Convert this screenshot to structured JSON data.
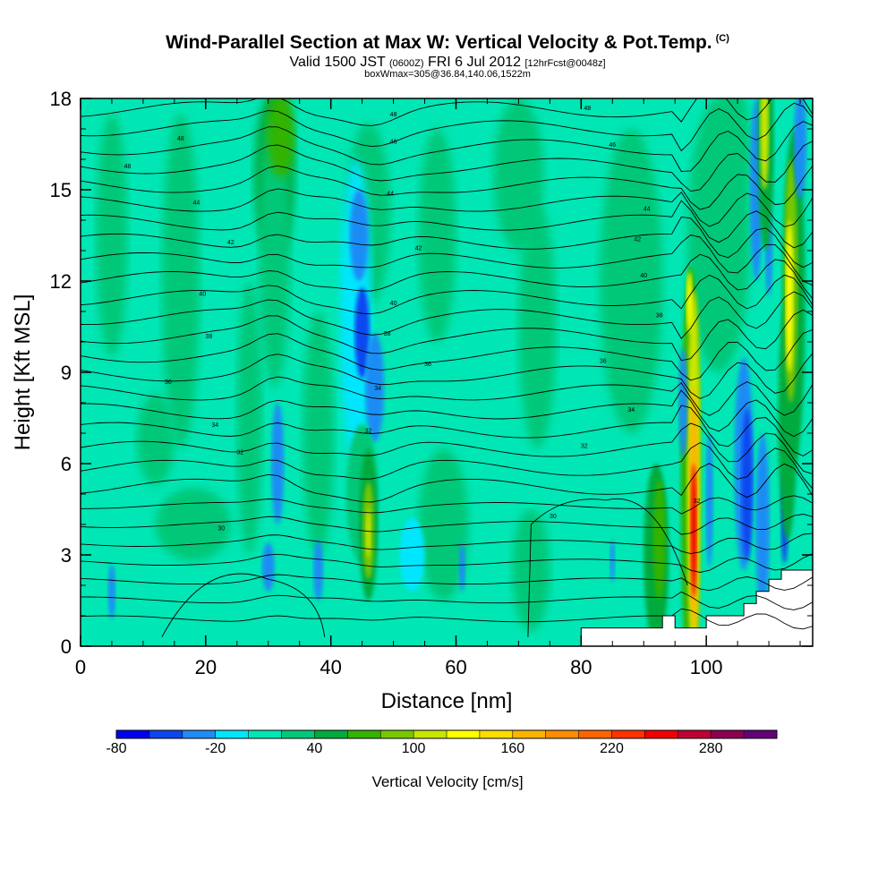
{
  "title": {
    "main": "Wind-Parallel Section at Max W: Vertical Velocity & Pot.Temp.",
    "copyright": "(C)",
    "valid_prefix": "Valid 1500 JST",
    "valid_utc": "(0600Z)",
    "valid_date": "FRI 6 Jul 2012",
    "forecast": "[12hrFcst@0048z]",
    "box_info": "boxWmax=305@36.84,140.06,1522m"
  },
  "chart_data": {
    "type": "heatmap",
    "xlabel": "Distance [nm]",
    "ylabel": "Height [Kft MSL]",
    "xlim": [
      0,
      117
    ],
    "ylim": [
      0,
      18
    ],
    "x_ticks": [
      0,
      20,
      40,
      60,
      80,
      100
    ],
    "y_ticks": [
      0,
      3,
      6,
      9,
      12,
      15,
      18
    ],
    "colorbar": {
      "title": "Vertical Velocity [cm/s]",
      "tick_labels": [
        "-80",
        "-20",
        "40",
        "100",
        "160",
        "220",
        "280"
      ],
      "levels": [
        -80,
        -60,
        -40,
        -20,
        0,
        20,
        40,
        60,
        80,
        100,
        120,
        140,
        160,
        180,
        200,
        220,
        240,
        260,
        280,
        300,
        320
      ],
      "colors": [
        "#0000f0",
        "#0a46f0",
        "#1e8cf5",
        "#00e6ff",
        "#00e6b4",
        "#00c878",
        "#00aa3c",
        "#32b400",
        "#78c800",
        "#c8e600",
        "#ffff00",
        "#ffdc00",
        "#ffb400",
        "#ff8c00",
        "#ff6400",
        "#ff3200",
        "#f00000",
        "#be0032",
        "#8c0050",
        "#640078"
      ]
    },
    "contour_labels": [
      {
        "x": 16,
        "y": 16.7,
        "text": "48"
      },
      {
        "x": 7.5,
        "y": 15.8,
        "text": "48"
      },
      {
        "x": 50,
        "y": 17.5,
        "text": "48"
      },
      {
        "x": 81,
        "y": 17.7,
        "text": "48"
      },
      {
        "x": 50,
        "y": 16.6,
        "text": "46"
      },
      {
        "x": 85,
        "y": 16.5,
        "text": "46"
      },
      {
        "x": 18.5,
        "y": 14.6,
        "text": "44"
      },
      {
        "x": 49.5,
        "y": 14.9,
        "text": "44"
      },
      {
        "x": 90.5,
        "y": 14.4,
        "text": "44"
      },
      {
        "x": 24,
        "y": 13.3,
        "text": "42"
      },
      {
        "x": 54,
        "y": 13.1,
        "text": "42"
      },
      {
        "x": 89,
        "y": 13.4,
        "text": "42"
      },
      {
        "x": 19.5,
        "y": 11.6,
        "text": "40"
      },
      {
        "x": 50,
        "y": 11.3,
        "text": "40"
      },
      {
        "x": 90,
        "y": 12.2,
        "text": "40"
      },
      {
        "x": 20.5,
        "y": 10.2,
        "text": "38"
      },
      {
        "x": 49,
        "y": 10.3,
        "text": "38"
      },
      {
        "x": 92.5,
        "y": 10.9,
        "text": "38"
      },
      {
        "x": 55.5,
        "y": 9.3,
        "text": "36"
      },
      {
        "x": 83.5,
        "y": 9.4,
        "text": "36"
      },
      {
        "x": 14,
        "y": 8.7,
        "text": "36"
      },
      {
        "x": 47.5,
        "y": 8.5,
        "text": "34"
      },
      {
        "x": 88,
        "y": 7.8,
        "text": "34"
      },
      {
        "x": 21.5,
        "y": 7.3,
        "text": "34"
      },
      {
        "x": 46,
        "y": 7.1,
        "text": "32"
      },
      {
        "x": 25.5,
        "y": 6.4,
        "text": "32"
      },
      {
        "x": 80.5,
        "y": 6.6,
        "text": "32"
      },
      {
        "x": 98.5,
        "y": 4.8,
        "text": "32"
      },
      {
        "x": 22.5,
        "y": 3.9,
        "text": "30"
      },
      {
        "x": 75.5,
        "y": 4.3,
        "text": "30"
      }
    ]
  }
}
